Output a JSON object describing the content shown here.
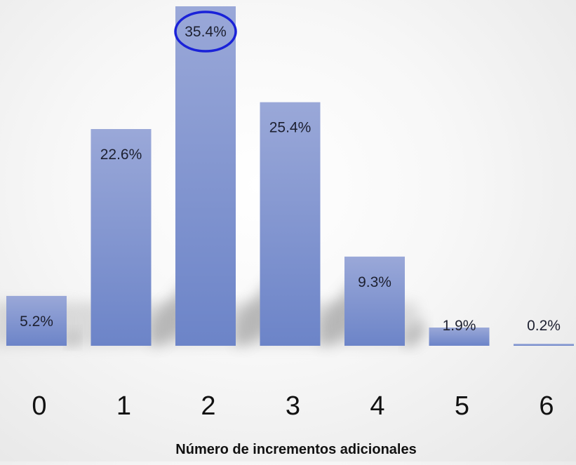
{
  "chart_data": {
    "type": "bar",
    "title": "",
    "xlabel": "Número de incrementos adicionales",
    "ylabel": "",
    "categories": [
      "0",
      "1",
      "2",
      "3",
      "4",
      "5",
      "6"
    ],
    "values": [
      5.2,
      22.6,
      35.4,
      25.4,
      9.3,
      1.9,
      0.2
    ],
    "value_labels": [
      "5.2%",
      "22.6%",
      "35.4%",
      "25.4%",
      "9.3%",
      "1.9%",
      "0.2%"
    ],
    "ylim": [
      0,
      35.4
    ],
    "grid": false,
    "legend": "none",
    "highlighted_category": "2"
  },
  "colors": {
    "bar_top": "#9aa8d8",
    "bar_bottom": "#6c84c8",
    "highlight_ring": "#1a22d8",
    "shadow": "#8a8a8a"
  }
}
